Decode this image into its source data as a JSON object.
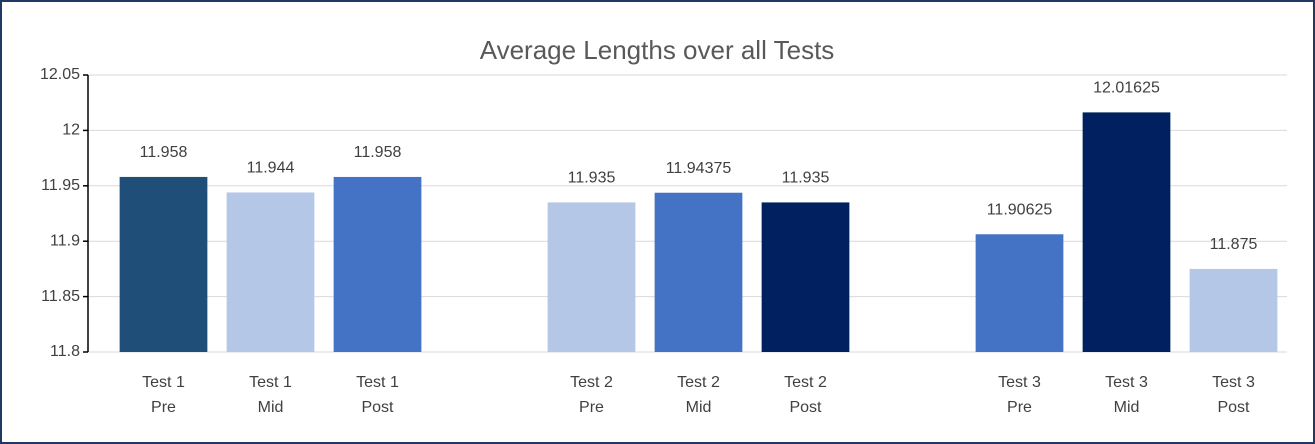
{
  "chart_data": {
    "type": "bar",
    "title": "Average Lengths over all Tests",
    "categories": [
      "Test 1\nPre",
      "Test 1\nMid",
      "Test 1\nPost",
      null,
      "Test 2\nPre",
      "Test 2\nMid",
      "Test 2\nPost",
      null,
      "Test 3\nPre",
      "Test 3\nMid",
      "Test 3\nPost"
    ],
    "values": [
      11.958,
      11.944,
      11.958,
      null,
      11.935,
      11.94375,
      11.935,
      null,
      11.90625,
      12.01625,
      11.875
    ],
    "colors": [
      "#1f4e79",
      "#b4c7e7",
      "#4472c4",
      null,
      "#b4c7e7",
      "#4472c4",
      "#002060",
      null,
      "#4472c4",
      "#002060",
      "#b4c7e7"
    ],
    "ylim": [
      11.8,
      12.05
    ],
    "yticks": [
      11.8,
      11.85,
      11.9,
      11.95,
      12,
      12.05
    ],
    "grid": true
  }
}
